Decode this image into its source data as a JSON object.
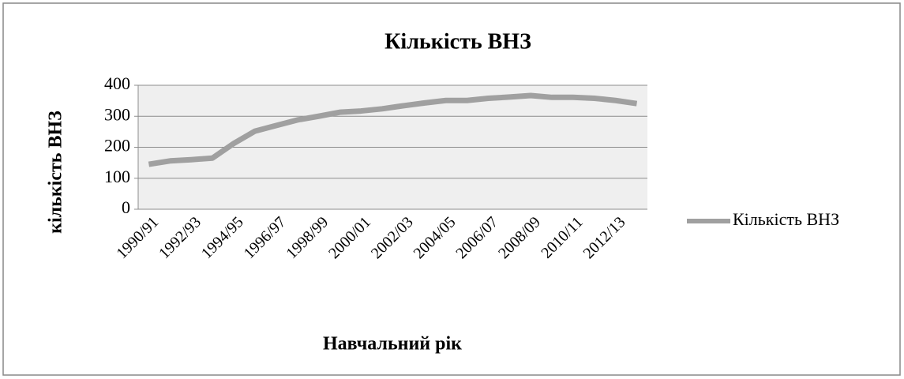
{
  "chart_data": {
    "type": "line",
    "title": "Кількість ВНЗ",
    "x_label": "Навчальний рік",
    "y_label": "кількість ВНЗ",
    "categories": [
      "1990/91",
      null,
      "1992/93",
      null,
      "1994/95",
      null,
      "1996/97",
      null,
      "1998/99",
      null,
      "2000/01",
      null,
      "2002/03",
      null,
      "2004/05",
      null,
      "2006/07",
      null,
      "2008/09",
      null,
      "2010/11",
      null,
      "2012/13",
      null
    ],
    "series": [
      {
        "name": "Кількість ВНЗ",
        "color": "#a0a0a0",
        "values": [
          145,
          156,
          160,
          165,
          212,
          252,
          270,
          288,
          300,
          313,
          317,
          324,
          334,
          343,
          351,
          351,
          358,
          362,
          367,
          361,
          361,
          358,
          351,
          341
        ]
      }
    ],
    "ylim": [
      0,
      400
    ],
    "yticks": [
      0,
      100,
      200,
      300,
      400
    ],
    "grid": true,
    "legend": "right"
  }
}
